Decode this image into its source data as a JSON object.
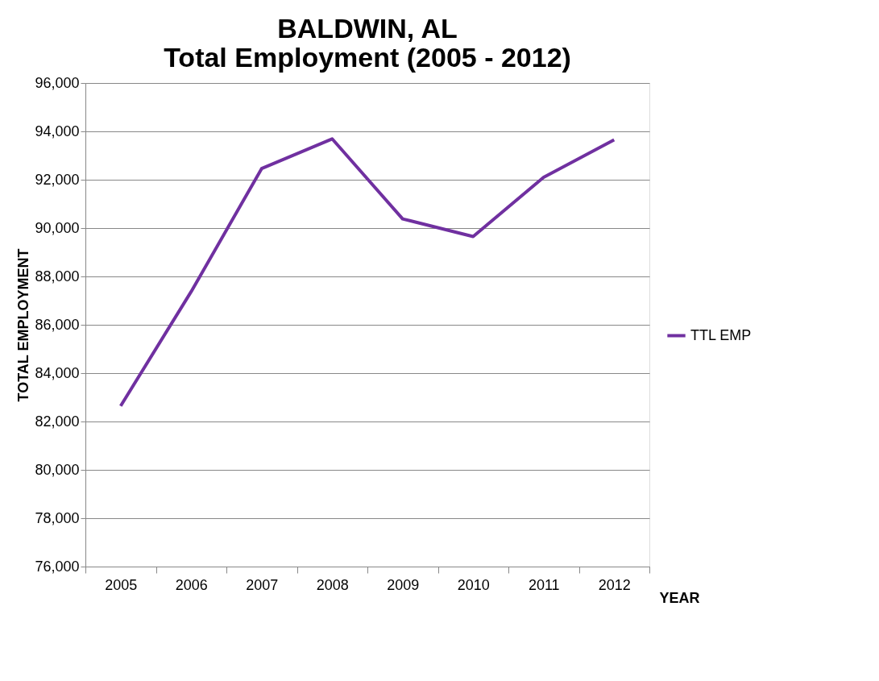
{
  "chart_data": {
    "type": "line",
    "title": [
      "BALDWIN, AL",
      "Total Employment (2005 - 2012)"
    ],
    "xlabel": "YEAR",
    "ylabel": "TOTAL EMPLOYMENT",
    "categories": [
      "2005",
      "2006",
      "2007",
      "2008",
      "2009",
      "2010",
      "2011",
      "2012"
    ],
    "series": [
      {
        "name": "TTL EMP",
        "color": "#7030a0",
        "values": [
          82640,
          87370,
          92460,
          93690,
          90380,
          89650,
          92100,
          93650
        ]
      }
    ],
    "ylim": [
      76000,
      96000
    ],
    "yticks": [
      {
        "value": 76000,
        "label": "76,000"
      },
      {
        "value": 78000,
        "label": "78,000"
      },
      {
        "value": 80000,
        "label": "80,000"
      },
      {
        "value": 82000,
        "label": "82,000"
      },
      {
        "value": 84000,
        "label": "84,000"
      },
      {
        "value": 86000,
        "label": "86,000"
      },
      {
        "value": 88000,
        "label": "88,000"
      },
      {
        "value": 90000,
        "label": "90,000"
      },
      {
        "value": 92000,
        "label": "92,000"
      },
      {
        "value": 94000,
        "label": "94,000"
      },
      {
        "value": 96000,
        "label": "96,000"
      }
    ],
    "grid": "y",
    "legend": "right",
    "marker": "none",
    "line_style": "solid"
  }
}
